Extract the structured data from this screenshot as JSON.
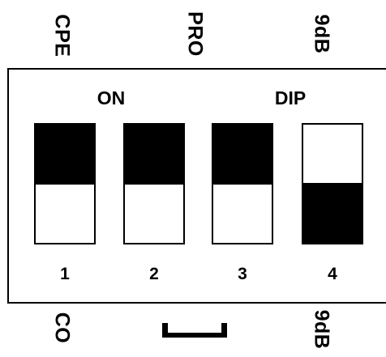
{
  "top_labels": [
    "CPE",
    "PRO",
    "9dB"
  ],
  "bottom_labels": [
    "CO",
    "9dB"
  ],
  "panel": {
    "on_label": "ON",
    "dip_label": "DIP",
    "switches": [
      {
        "number": "1",
        "state": "on"
      },
      {
        "number": "2",
        "state": "on"
      },
      {
        "number": "3",
        "state": "on"
      },
      {
        "number": "4",
        "state": "off"
      }
    ]
  },
  "colors": {
    "foreground": "#000000",
    "background": "#ffffff"
  }
}
